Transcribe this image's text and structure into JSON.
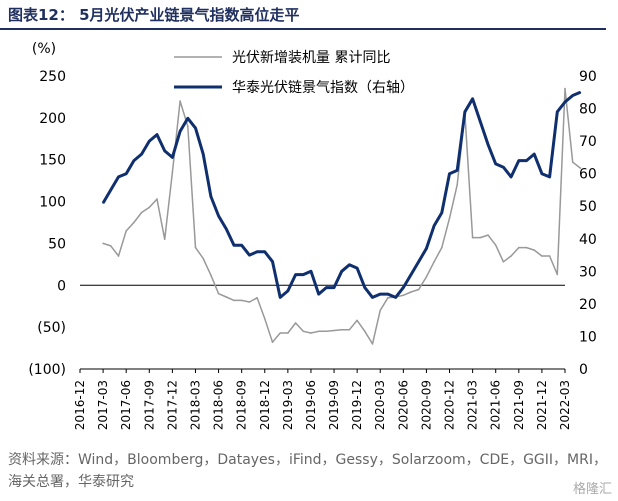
{
  "title": "图表12： 5月光伏产业链景气指数高位走平",
  "source": "资料来源：Wind，Bloomberg，Datayes，iFind，Gessy，Solarzoom，CDE，GGII，MRI，海关总署，华泰研究",
  "watermark": "格隆汇",
  "chart_data": {
    "type": "line",
    "left_unit": "(%)",
    "ylim_left": [
      -100,
      250
    ],
    "ylim_right": [
      0,
      90
    ],
    "left_ticks": [
      -100,
      -50,
      0,
      50,
      100,
      150,
      200,
      250
    ],
    "left_tick_labels": [
      "(100)",
      "(50)",
      "0",
      "50",
      "100",
      "150",
      "200",
      "250"
    ],
    "right_ticks": [
      0,
      10,
      20,
      30,
      40,
      50,
      60,
      70,
      80,
      90
    ],
    "right_tick_labels": [
      "0",
      "10",
      "20",
      "30",
      "40",
      "50",
      "60",
      "70",
      "80",
      "90"
    ],
    "x_tick_labels": [
      "2016-12",
      "2017-03",
      "2017-06",
      "2017-09",
      "2017-12",
      "2018-03",
      "2018-06",
      "2018-09",
      "2018-12",
      "2019-03",
      "2019-06",
      "2019-09",
      "2019-12",
      "2020-03",
      "2020-06",
      "2020-09",
      "2020-12",
      "2021-03",
      "2021-06",
      "2021-09",
      "2021-12",
      "2022-03"
    ],
    "series": [
      {
        "name": "光伏新增装机量 累计同比",
        "axis": "left",
        "color": "#999999",
        "width": 1.5,
        "x": [
          3,
          4,
          5,
          6,
          7,
          8,
          9,
          10,
          11,
          12,
          13,
          14,
          15,
          16,
          17,
          18,
          19,
          20,
          21,
          22,
          23,
          24,
          25,
          26,
          27,
          28,
          29,
          30,
          31,
          32,
          33,
          34,
          35,
          36,
          37,
          38,
          39,
          40,
          41,
          42,
          43,
          44,
          45,
          46,
          47,
          48,
          49,
          50,
          51,
          52,
          53,
          54,
          55,
          56,
          57,
          58,
          59,
          60,
          61,
          62,
          63,
          64,
          65
        ],
        "values": [
          50,
          47,
          35,
          65,
          75,
          87,
          93,
          103,
          55,
          135,
          220,
          190,
          45,
          32,
          12,
          -10,
          -14,
          -18,
          -18,
          -20,
          -15,
          -40,
          -68,
          -57,
          -57,
          -45,
          -55,
          -57,
          -55,
          -55,
          -54,
          -53,
          -53,
          -42,
          -55,
          -70,
          -30,
          -15,
          -14,
          -12,
          -8,
          -5,
          10,
          28,
          45,
          80,
          120,
          205,
          57,
          57,
          60,
          48,
          28,
          35,
          45,
          45,
          42,
          35,
          35,
          13,
          235,
          147,
          140
        ]
      },
      {
        "name": "华泰光伏链景气指数（右轴）",
        "axis": "right",
        "color": "#0f2f6e",
        "width": 3,
        "x": [
          3,
          4,
          5,
          6,
          7,
          8,
          9,
          10,
          11,
          12,
          13,
          14,
          15,
          16,
          17,
          18,
          19,
          20,
          21,
          22,
          23,
          24,
          25,
          26,
          27,
          28,
          29,
          30,
          31,
          32,
          33,
          34,
          35,
          36,
          37,
          38,
          39,
          40,
          41,
          42,
          43,
          44,
          45,
          46,
          47,
          48,
          49,
          50,
          51,
          52,
          53,
          54,
          55,
          56,
          57,
          58,
          59,
          60,
          61,
          62,
          63,
          64,
          65
        ],
        "values": [
          51,
          55,
          59,
          60,
          64,
          66,
          70,
          72,
          67,
          65,
          73,
          77,
          74,
          66,
          53,
          47,
          43,
          38,
          38,
          35,
          36,
          36,
          33,
          22,
          24,
          29,
          29,
          30,
          23,
          25,
          25,
          30,
          32,
          31,
          25,
          22,
          23,
          23,
          22,
          25,
          29,
          33,
          37,
          44,
          48,
          60,
          61,
          79,
          83,
          76,
          69,
          63,
          62,
          59,
          64,
          64,
          66,
          60,
          59,
          79,
          82,
          84,
          85
        ]
      }
    ]
  }
}
